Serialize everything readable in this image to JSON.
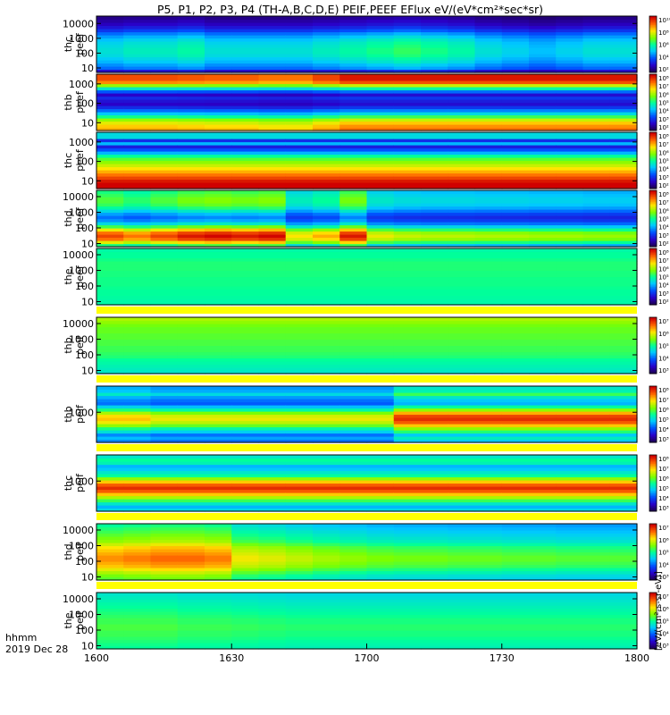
{
  "title": "P5, P1, P2, P3, P4 (TH-A,B,C,D,E) PEIF,PEEF EFlux eV/(eV*cm²*sec*sr)",
  "time_label": "hhmm",
  "date_label": "2019 Dec 28",
  "cbar_unit_label": "[eV/(cm²-s-sr-eV)]",
  "chart_data": {
    "type": "heatmap",
    "x_unit": "hhmm",
    "x_ticks": [
      "1600",
      "1630",
      "1700",
      "1730",
      "1800"
    ],
    "time_minutes": [
      0,
      120
    ],
    "n_time_bins": 20,
    "panels": [
      {
        "probe": "thc",
        "species": "peef",
        "y_ticks": [
          "10000",
          "1000",
          "100",
          "10"
        ],
        "y_log_range": [
          0.7,
          4.5
        ],
        "cbar_ticks": [
          "10¹⁰",
          "10⁸",
          "10⁶",
          "10⁴",
          "10²"
        ],
        "cbar_log_range": [
          1,
          10.5
        ],
        "profile": [
          2,
          3,
          3.3,
          3.6,
          3.8,
          4.0,
          4.1,
          4.1,
          4.0,
          3.9,
          3.7,
          3.4,
          3.0,
          2.5,
          2.1,
          1.8,
          1.6,
          1.4
        ],
        "time_factor": [
          1,
          1.05,
          1.05,
          1.1,
          1,
          1,
          1,
          1,
          1.05,
          1.1,
          1.15,
          1.2,
          1.15,
          1.1,
          1,
          0.95,
          0.9,
          0.95,
          1,
          1
        ]
      },
      {
        "probe": "thb",
        "species": "peef",
        "y_ticks": [
          "1000",
          "100",
          "10"
        ],
        "y_log_range": [
          0.6,
          3.5
        ],
        "cbar_ticks": [
          "10⁸",
          "10⁷",
          "10⁶",
          "10⁵",
          "10⁴",
          "10³",
          "10²"
        ],
        "cbar_log_range": [
          2,
          8.5
        ],
        "profile": [
          7.2,
          7.0,
          6.6,
          6.0,
          5.0,
          4.0,
          3.2,
          2.5,
          2.0,
          2.2,
          2.5,
          2.0,
          3.0,
          4.5,
          6.0,
          7.5,
          8.0,
          8.0
        ],
        "time_factor": [
          0.94,
          0.94,
          0.94,
          0.93,
          0.92,
          0.92,
          0.9,
          0.9,
          0.95,
          1,
          1,
          1,
          1,
          1,
          1,
          1,
          1,
          1,
          1,
          1
        ]
      },
      {
        "probe": "thc",
        "species": "peef",
        "y_ticks": [
          "1000",
          "100",
          "10"
        ],
        "y_log_range": [
          0.6,
          3.5
        ],
        "cbar_ticks": [
          "10⁸",
          "10⁷",
          "10⁶",
          "10⁵",
          "10⁴",
          "10³",
          "10²"
        ],
        "cbar_log_range": [
          2,
          8.5
        ],
        "profile": [
          8.3,
          8.2,
          8.0,
          7.6,
          7.2,
          6.8,
          6.4,
          6.0,
          5.6,
          5.2,
          4.6,
          3.6,
          2.8,
          2.2,
          3.6,
          2.4,
          4.0,
          4.0
        ],
        "time_factor": [
          1,
          1,
          1,
          1,
          1,
          1,
          1,
          1,
          1,
          1,
          1,
          1,
          1,
          1,
          1,
          1,
          1,
          1,
          1,
          1
        ]
      },
      {
        "probe": "thd",
        "species": "peef",
        "y_ticks": [
          "10000",
          "1000",
          "100",
          "10"
        ],
        "y_log_range": [
          0.8,
          4.4
        ],
        "cbar_ticks": [
          "10⁸",
          "10⁷",
          "10⁶",
          "10⁵",
          "10⁴",
          "10³",
          "10²"
        ],
        "cbar_log_range": [
          2,
          8.5
        ],
        "profile": [
          5,
          6.5,
          7.6,
          8,
          7.6,
          6.6,
          5.3,
          4.2,
          3.5,
          3.2,
          3.6,
          4.2,
          4.8,
          5.2,
          5.4,
          5.4,
          5.2,
          5.0
        ],
        "time_factor": [
          0.95,
          0.9,
          0.95,
          1,
          1.02,
          1.0,
          1.02,
          0.8,
          0.85,
          1,
          0.78,
          0.75,
          0.74,
          0.74,
          0.73,
          0.73,
          0.72,
          0.72,
          0.71,
          0.71
        ]
      },
      {
        "probe": "the",
        "species": "peef",
        "y_ticks": [
          "10000",
          "1000",
          "100",
          "10"
        ],
        "y_log_range": [
          0.8,
          4.4
        ],
        "cbar_ticks": [
          "10⁸",
          "10⁷",
          "10⁶",
          "10⁵",
          "10⁴",
          "10³",
          "10²"
        ],
        "cbar_log_range": [
          2,
          8.5
        ],
        "profile": [
          4.5,
          4.5,
          4.55,
          4.6,
          4.6,
          4.65,
          4.7,
          4.7,
          4.7,
          4.75,
          4.75,
          4.8,
          4.8,
          4.8,
          4.7,
          4.6,
          4.6,
          4.5
        ],
        "time_factor": [
          1,
          1,
          1,
          1,
          1,
          1,
          1,
          1,
          1,
          1,
          1,
          1,
          1,
          1,
          1,
          1,
          1,
          1,
          1,
          1
        ]
      },
      {
        "probe": "thb",
        "species": "peif",
        "y_ticks": [
          "10000",
          "1000",
          "100",
          "10"
        ],
        "y_log_range": [
          0.8,
          4.4
        ],
        "cbar_ticks": [
          "10⁷",
          "10⁶",
          "10⁵",
          "10⁴",
          "10³"
        ],
        "cbar_log_range": [
          2.5,
          7.8
        ],
        "profile": [
          4.2,
          4.3,
          4.4,
          4.5,
          4.6,
          4.8,
          4.9,
          5.0,
          5.0,
          5.1,
          5.1,
          5.2,
          5.2,
          5.3,
          5.3,
          5.4,
          5.6,
          5.8
        ],
        "time_factor": [
          1,
          1,
          1,
          1,
          1,
          1,
          1,
          1,
          1,
          1,
          1,
          1,
          1,
          1,
          1,
          1,
          1,
          1,
          1,
          1
        ]
      },
      {
        "probe": "thb",
        "species": "peif",
        "y_ticks": [
          "1000"
        ],
        "y_log_range": [
          1.5,
          4.3
        ],
        "cbar_ticks": [
          "10⁸",
          "10⁷",
          "10⁶",
          "10⁵",
          "10⁴",
          "10³"
        ],
        "cbar_log_range": [
          2.8,
          8.2
        ],
        "profile": [
          3.8,
          4.3,
          3.8,
          4.8,
          5.6,
          6.6,
          7.4,
          7.8,
          7.6,
          6.8,
          5.6,
          4.6,
          3.6,
          3.8,
          4.2,
          5.0,
          4.4,
          4.2
        ],
        "time_factor": [
          0.85,
          0.85,
          0.8,
          0.8,
          0.8,
          0.8,
          0.8,
          0.8,
          0.8,
          0.8,
          0.8,
          1,
          1,
          1,
          1,
          1,
          1,
          1,
          1,
          1
        ]
      },
      {
        "probe": "thc",
        "species": "peif",
        "y_ticks": [
          "1000"
        ],
        "y_log_range": [
          1.5,
          4.3
        ],
        "cbar_ticks": [
          "10⁸",
          "10⁷",
          "10⁶",
          "10⁵",
          "10⁴",
          "10³"
        ],
        "cbar_log_range": [
          2.8,
          8.2
        ],
        "profile": [
          4,
          3.6,
          4.2,
          5.0,
          5.8,
          6.6,
          7.4,
          7.8,
          7.4,
          6.6,
          5.6,
          4.6,
          4.2,
          3.8,
          3.6,
          4.4,
          4.6,
          4.2
        ],
        "time_factor": [
          1,
          1,
          1,
          1,
          1,
          1,
          1,
          1,
          1,
          1,
          1,
          1,
          1,
          1,
          1,
          1,
          1,
          1,
          1,
          1
        ]
      },
      {
        "probe": "thd",
        "species": "peif",
        "y_ticks": [
          "10000",
          "1000",
          "100",
          "10"
        ],
        "y_log_range": [
          0.8,
          4.4
        ],
        "cbar_ticks": [
          "10⁷",
          "10⁶",
          "10⁵",
          "10⁴",
          "10³"
        ],
        "cbar_log_range": [
          2.5,
          7.8
        ],
        "profile": [
          5.2,
          5.4,
          5.8,
          6.2,
          6.6,
          6.8,
          7.0,
          7.0,
          6.8,
          6.6,
          6.4,
          6.0,
          5.6,
          5.4,
          5.2,
          5.0,
          4.8,
          4.6
        ],
        "time_factor": [
          1,
          1.02,
          1.04,
          1.04,
          1.02,
          0.9,
          0.88,
          0.85,
          0.82,
          0.8,
          0.78,
          0.77,
          0.77,
          0.76,
          0.76,
          0.75,
          0.75,
          0.74,
          0.74,
          0.74
        ]
      },
      {
        "probe": "the",
        "species": "peif",
        "y_ticks": [
          "10000",
          "1000",
          "100",
          "10"
        ],
        "y_log_range": [
          0.8,
          4.4
        ],
        "cbar_ticks": [
          "10⁷",
          "10⁶",
          "10⁵",
          "10⁴",
          "10³"
        ],
        "cbar_log_range": [
          2.5,
          7.8
        ],
        "profile": [
          4.6,
          4.7,
          4.8,
          4.9,
          5.0,
          5.0,
          5.1,
          5.1,
          5.0,
          5.0,
          4.9,
          4.8,
          4.7,
          4.6,
          4.5,
          4.4,
          4.3,
          4.2
        ],
        "time_factor": [
          1,
          1,
          1,
          0.98,
          0.98,
          0.97,
          0.96,
          0.95,
          0.95,
          0.95,
          0.95,
          0.95,
          0.95,
          0.95,
          0.95,
          0.95,
          0.95,
          0.95,
          0.95,
          0.95
        ]
      }
    ]
  }
}
